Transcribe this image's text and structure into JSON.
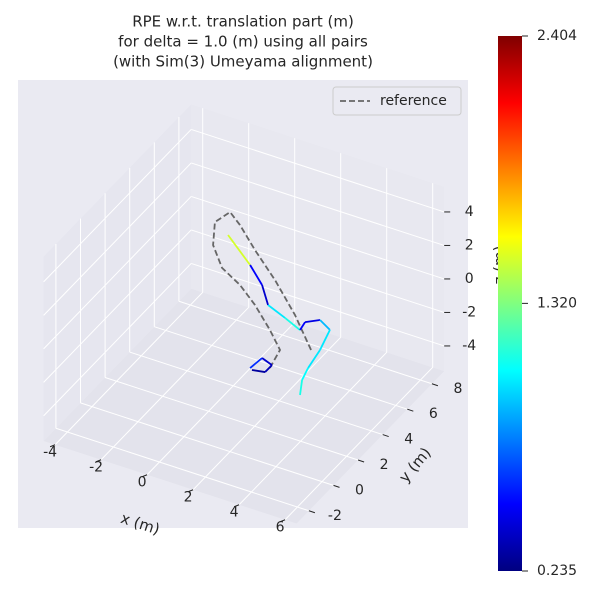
{
  "chart_data": {
    "type": "line3d",
    "title": [
      "RPE w.r.t. translation part (m)",
      "for delta = 1.0 (m) using all pairs",
      "(with Sim(3) Umeyama alignment)"
    ],
    "xlabel": "x (m)",
    "ylabel": "y (m)",
    "zlabel": "z (m)",
    "xlim": [
      -4.5,
      6.5
    ],
    "ylim": [
      -3,
      9
    ],
    "zlim": [
      -5.5,
      5.5
    ],
    "xticks": [
      -4,
      -2,
      0,
      2,
      4,
      6
    ],
    "yticks": [
      -2,
      0,
      2,
      4,
      6,
      8
    ],
    "zticks": [
      -4,
      -2,
      0,
      2,
      4
    ],
    "grid": true,
    "legend": "upper right",
    "series": [
      {
        "name": "reference",
        "color": "#666666",
        "dash": true,
        "x": [
          2.13,
          2.57,
          2.13,
          1.48,
          0.83,
          0.05,
          -0.34,
          -0.26,
          0.4,
          0.83,
          1.48,
          2.35,
          3.22,
          3.96
        ],
        "y": [
          3,
          3,
          3,
          3,
          3,
          3,
          3,
          3,
          3,
          3,
          3,
          3,
          3,
          3
        ],
        "z": [
          -2.72,
          -1.45,
          -0.45,
          0.75,
          1.65,
          2.32,
          3.51,
          4.92,
          5.81,
          5.23,
          4.03,
          2.63,
          0.93,
          -0.95
        ]
      }
    ],
    "colored_series": [
      {
        "x": [
          0.31,
          1.27,
          1.79,
          2.05,
          2.79,
          3.44,
          3.66,
          4.31,
          4.74,
          4.31,
          3.79,
          3.53,
          3.44
        ],
        "y": [
          3,
          3,
          3,
          3,
          3,
          3,
          3,
          3,
          3,
          3,
          3,
          3,
          3
        ],
        "z": [
          4.4,
          3.04,
          2.08,
          1.0,
          0.56,
          0.13,
          0.7,
          1.12,
          0.72,
          -0.67,
          -1.98,
          -2.81,
          -3.75
        ],
        "error": [
          1.4,
          1.5,
          0.5,
          0.4,
          1.0,
          1.1,
          0.5,
          0.45,
          0.9,
          1.0,
          1.0,
          1.05,
          1.1
        ]
      },
      {
        "x": [
          1.27,
          1.79,
          2.22,
          1.92,
          1.35
        ],
        "y": [
          3,
          3,
          3,
          3,
          3
        ],
        "z": [
          -3.11,
          -2.28,
          -2.51,
          -3.06,
          -3.19
        ],
        "error": [
          0.3,
          0.6,
          0.4,
          0.35,
          0.3
        ]
      }
    ],
    "clim": [
      0.235,
      2.404
    ],
    "cticks": [
      {
        "value": 0.235,
        "label": "0.235"
      },
      {
        "value": 1.32,
        "label": "1.320"
      },
      {
        "value": 2.404,
        "label": "2.404"
      }
    ]
  }
}
